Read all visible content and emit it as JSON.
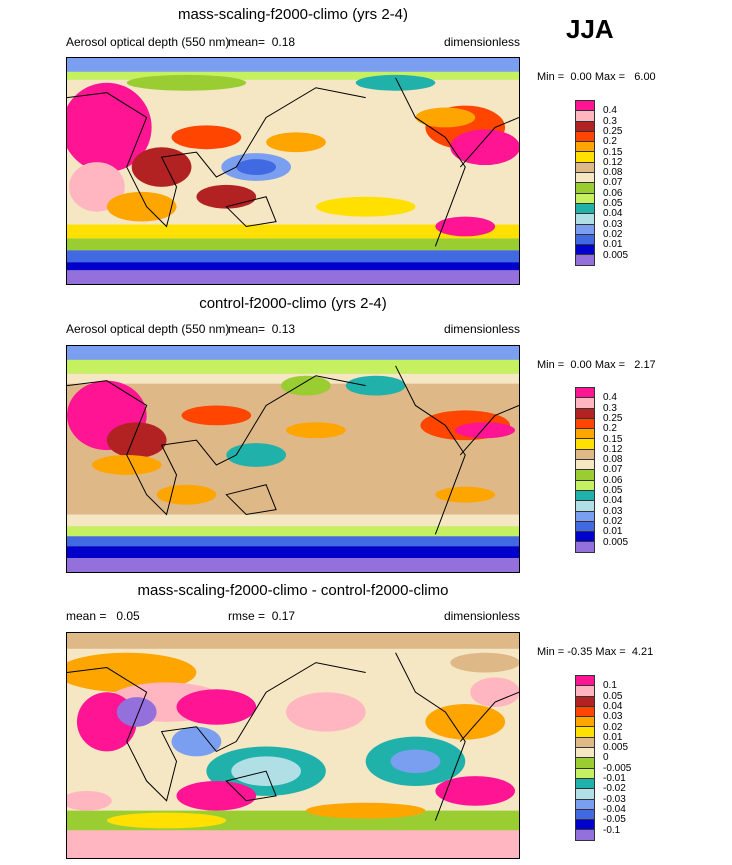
{
  "season": "JJA",
  "palette": [
    "#ff1493",
    "#ffb6c1",
    "#b22222",
    "#ff4500",
    "#ffa500",
    "#ffe000",
    "#deb887",
    "#f5e6c4",
    "#9acd32",
    "#c5f060",
    "#20b2aa",
    "#b0e0e6",
    "#7b9ff0",
    "#4169e1",
    "#0000cd",
    "#9370db"
  ],
  "panels": [
    {
      "title": "mass-scaling-f2000-climo (yrs 2-4)",
      "left_label": "Aerosol optical depth (550 nm)",
      "mid_label": "mean=",
      "mid_value": "0.18",
      "units": "dimensionless",
      "min_label": "Min =",
      "min_value": "0.00",
      "max_label": "Max =",
      "max_value": "6.00",
      "levels": [
        "0.4",
        "0.3",
        "0.25",
        "0.2",
        "0.15",
        "0.12",
        "0.08",
        "0.07",
        "0.06",
        "0.05",
        "0.04",
        "0.03",
        "0.02",
        "0.01",
        "0.005"
      ]
    },
    {
      "title": "control-f2000-climo (yrs 2-4)",
      "left_label": "Aerosol optical depth (550 nm)",
      "mid_label": "mean=",
      "mid_value": "0.13",
      "units": "dimensionless",
      "min_label": "Min =",
      "min_value": "0.00",
      "max_label": "Max =",
      "max_value": "2.17",
      "levels": [
        "0.4",
        "0.3",
        "0.25",
        "0.2",
        "0.15",
        "0.12",
        "0.08",
        "0.07",
        "0.06",
        "0.05",
        "0.04",
        "0.03",
        "0.02",
        "0.01",
        "0.005"
      ]
    },
    {
      "title": "mass-scaling-f2000-climo - control-f2000-climo",
      "left_label": "mean =",
      "left_value": "0.05",
      "mid_label": "rmse =",
      "mid_value": "0.17",
      "units": "dimensionless",
      "min_label": "Min =",
      "min_value": "-0.35",
      "max_label": "Max =",
      "max_value": "4.21",
      "levels": [
        "0.1",
        "0.05",
        "0.04",
        "0.03",
        "0.02",
        "0.01",
        "0.005",
        "0",
        "-0.005",
        "-0.01",
        "-0.02",
        "-0.03",
        "-0.04",
        "-0.05",
        "-0.1"
      ]
    }
  ]
}
